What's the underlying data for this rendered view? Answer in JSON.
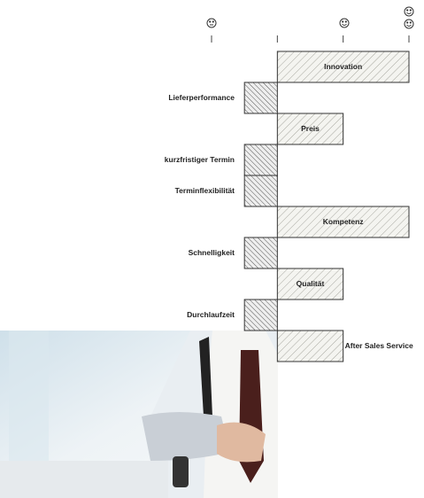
{
  "chart_data": {
    "type": "bar",
    "orientation": "horizontal",
    "categories": [
      "Innovation",
      "Lieferperformance",
      "Preis",
      "kurzfristiger Termin",
      "Terminflexibilität",
      "Kompetenz",
      "Schnelligkeit",
      "Qualität",
      "Durchlaufzeit",
      "After Sales Service"
    ],
    "values": [
      2,
      -0.5,
      1,
      -0.5,
      -0.5,
      2,
      -0.5,
      1,
      -0.5,
      1
    ],
    "xlim": [
      -1,
      2
    ],
    "xticks": [
      -1,
      0,
      1,
      2
    ]
  }
}
